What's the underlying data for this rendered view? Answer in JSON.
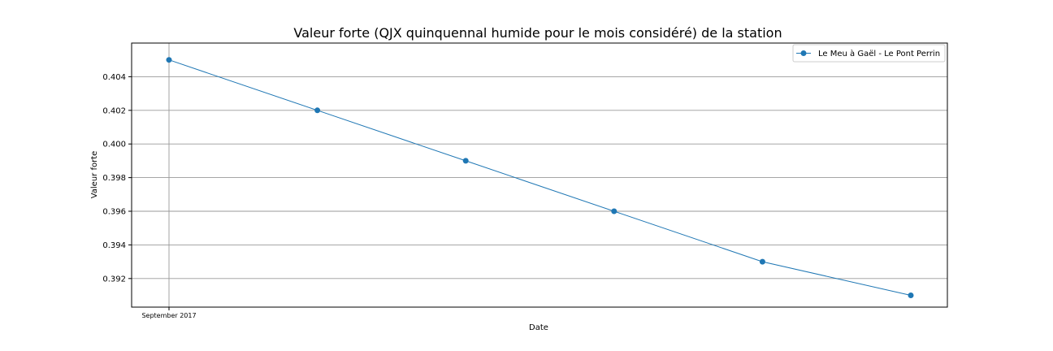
{
  "chart_data": {
    "type": "line",
    "title": "Valeur forte (QJX quinquennal humide pour le mois considéré) de la station",
    "xlabel": "Date",
    "ylabel": "Valeur forte",
    "x_tick_labels": [
      "September 2017"
    ],
    "x": [
      0,
      1,
      2,
      3,
      4,
      5
    ],
    "y_ticks": [
      0.392,
      0.394,
      0.396,
      0.398,
      0.4,
      0.402,
      0.404
    ],
    "y_tick_labels": [
      "0.392",
      "0.394",
      "0.396",
      "0.398",
      "0.400",
      "0.402",
      "0.404"
    ],
    "ylim": [
      0.3903,
      0.406
    ],
    "series": [
      {
        "name": "Le Meu à Gaël - Le Pont Perrin",
        "color": "#1f77b4",
        "values": [
          0.405,
          0.402,
          0.399,
          0.396,
          0.393,
          0.391
        ]
      }
    ],
    "grid": "horizontal lines at y ticks, vertical line at x tick",
    "legend_position": "top-right"
  }
}
